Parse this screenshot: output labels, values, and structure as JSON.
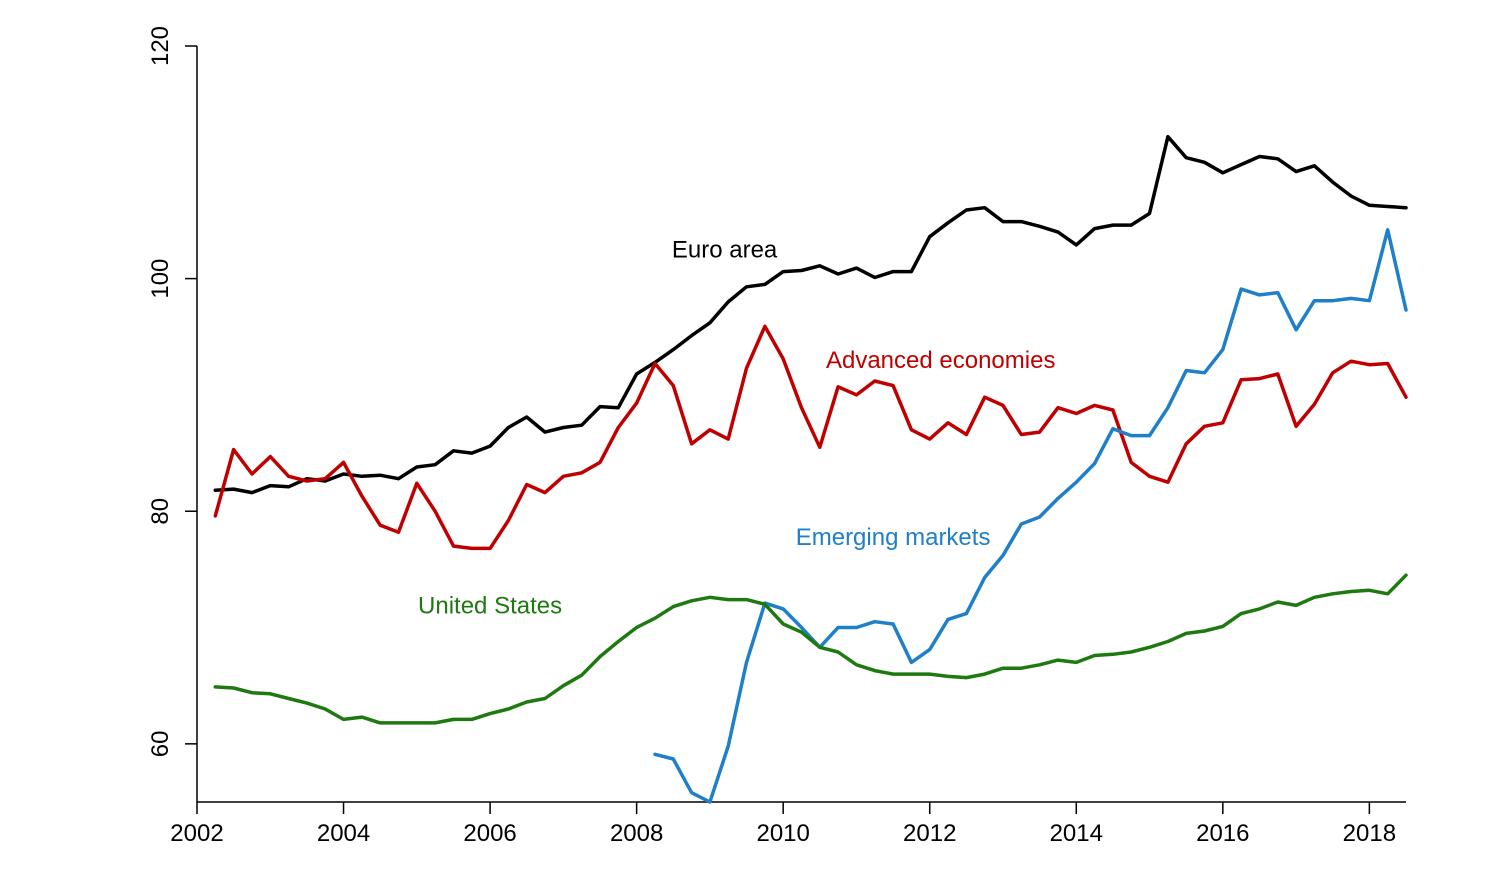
{
  "chart_data": {
    "type": "line",
    "title": "",
    "xlabel": "",
    "ylabel": "",
    "xlim": [
      2002,
      2018.5
    ],
    "ylim": [
      55,
      120
    ],
    "x_ticks": [
      2002,
      2004,
      2006,
      2008,
      2010,
      2012,
      2014,
      2016,
      2018
    ],
    "x_tick_labels": [
      "2002",
      "2004",
      "2006",
      "2008",
      "2010",
      "2012",
      "2014",
      "2016",
      "2018"
    ],
    "y_ticks": [
      60,
      80,
      100,
      120
    ],
    "y_tick_labels": [
      "60",
      "80",
      "100",
      "120"
    ],
    "grid": false,
    "legend": "none",
    "series": [
      {
        "name": "Euro area",
        "color": "#000000",
        "x": [
          2002.25,
          2002.5,
          2002.75,
          2003,
          2003.25,
          2003.5,
          2003.75,
          2004,
          2004.25,
          2004.5,
          2004.75,
          2005,
          2005.25,
          2005.5,
          2005.75,
          2006,
          2006.25,
          2006.5,
          2006.75,
          2007,
          2007.25,
          2007.5,
          2007.75,
          2008,
          2008.25,
          2008.5,
          2008.75,
          2009,
          2009.25,
          2009.5,
          2009.75,
          2010,
          2010.25,
          2010.5,
          2010.75,
          2011,
          2011.25,
          2011.5,
          2011.75,
          2012,
          2012.25,
          2012.5,
          2012.75,
          2013,
          2013.25,
          2013.5,
          2013.75,
          2014,
          2014.25,
          2014.5,
          2014.75,
          2015,
          2015.25,
          2015.5,
          2015.75,
          2016,
          2016.25,
          2016.5,
          2016.75,
          2017,
          2017.25,
          2017.5,
          2017.75,
          2018,
          2018.25,
          2018.5
        ],
        "y": [
          81.8,
          81.9,
          81.6,
          82.2,
          82.1,
          82.8,
          82.6,
          83.2,
          83.0,
          83.1,
          82.8,
          83.8,
          84.0,
          85.2,
          85.0,
          85.6,
          87.2,
          88.1,
          86.8,
          87.2,
          87.4,
          89.0,
          88.9,
          91.8,
          92.8,
          93.9,
          95.1,
          96.2,
          98.0,
          99.3,
          99.5,
          100.6,
          100.7,
          101.1,
          100.4,
          100.9,
          100.1,
          100.6,
          100.6,
          103.6,
          104.8,
          105.9,
          106.1,
          104.9,
          104.9,
          104.5,
          104.0,
          102.9,
          104.3,
          104.6,
          104.6,
          105.6,
          112.2,
          110.4,
          110.0,
          109.1,
          109.8,
          110.5,
          110.3,
          109.2,
          109.7,
          108.3,
          107.1,
          106.3,
          106.2,
          106.1
        ]
      },
      {
        "name": "Advanced economies",
        "color": "#c00000",
        "x": [
          2002.25,
          2002.5,
          2002.75,
          2003,
          2003.25,
          2003.5,
          2003.75,
          2004,
          2004.25,
          2004.5,
          2004.75,
          2005,
          2005.25,
          2005.5,
          2005.75,
          2006,
          2006.25,
          2006.5,
          2006.75,
          2007,
          2007.25,
          2007.5,
          2007.75,
          2008,
          2008.25,
          2008.5,
          2008.75,
          2009,
          2009.25,
          2009.5,
          2009.75,
          2010,
          2010.25,
          2010.5,
          2010.75,
          2011,
          2011.25,
          2011.5,
          2011.75,
          2012,
          2012.25,
          2012.5,
          2012.75,
          2013,
          2013.25,
          2013.5,
          2013.75,
          2014,
          2014.25,
          2014.5,
          2014.75,
          2015,
          2015.25,
          2015.5,
          2015.75,
          2016,
          2016.25,
          2016.5,
          2016.75,
          2017,
          2017.25,
          2017.5,
          2017.75,
          2018,
          2018.25,
          2018.5
        ],
        "y": [
          79.6,
          85.3,
          83.2,
          84.7,
          83.0,
          82.6,
          82.8,
          84.2,
          81.3,
          78.8,
          78.2,
          82.4,
          80.0,
          77.0,
          76.8,
          76.8,
          79.2,
          82.3,
          81.6,
          83.0,
          83.3,
          84.2,
          87.2,
          89.3,
          92.7,
          90.8,
          85.8,
          87.0,
          86.2,
          92.3,
          95.9,
          93.1,
          88.9,
          85.5,
          90.7,
          90.0,
          91.2,
          90.8,
          87.0,
          86.2,
          87.6,
          86.6,
          89.8,
          89.1,
          86.6,
          86.8,
          88.9,
          88.4,
          89.1,
          88.7,
          84.2,
          83.0,
          82.5,
          85.8,
          87.3,
          87.6,
          91.3,
          91.4,
          91.8,
          87.3,
          89.2,
          91.9,
          92.9,
          92.6,
          92.7,
          89.8
        ]
      },
      {
        "name": "Emerging markets",
        "color": "#1f7fc8",
        "x": [
          2008.25,
          2008.5,
          2008.75,
          2009,
          2009.25,
          2009.5,
          2009.75,
          2010,
          2010.25,
          2010.5,
          2010.75,
          2011,
          2011.25,
          2011.5,
          2011.75,
          2012,
          2012.25,
          2012.5,
          2012.75,
          2013,
          2013.25,
          2013.5,
          2013.75,
          2014,
          2014.25,
          2014.5,
          2014.75,
          2015,
          2015.25,
          2015.5,
          2015.75,
          2016,
          2016.25,
          2016.5,
          2016.75,
          2017,
          2017.25,
          2017.5,
          2017.75,
          2018,
          2018.25,
          2018.5
        ],
        "y": [
          59.1,
          58.7,
          55.8,
          55.0,
          59.8,
          67.0,
          72.1,
          71.6,
          70.0,
          68.3,
          70.0,
          70.0,
          70.5,
          70.3,
          67.0,
          68.1,
          70.7,
          71.2,
          74.3,
          76.2,
          78.9,
          79.5,
          81.1,
          82.5,
          84.1,
          87.1,
          86.5,
          86.5,
          88.9,
          92.1,
          91.9,
          93.9,
          99.1,
          98.6,
          98.8,
          95.6,
          98.1,
          98.1,
          98.3,
          98.1,
          104.2,
          97.3
        ]
      },
      {
        "name": "United States",
        "color": "#1e7a10",
        "x": [
          2002.25,
          2002.5,
          2002.75,
          2003,
          2003.25,
          2003.5,
          2003.75,
          2004,
          2004.25,
          2004.5,
          2004.75,
          2005,
          2005.25,
          2005.5,
          2005.75,
          2006,
          2006.25,
          2006.5,
          2006.75,
          2007,
          2007.25,
          2007.5,
          2007.75,
          2008,
          2008.25,
          2008.5,
          2008.75,
          2009,
          2009.25,
          2009.5,
          2009.75,
          2010,
          2010.25,
          2010.5,
          2010.75,
          2011,
          2011.25,
          2011.5,
          2011.75,
          2012,
          2012.25,
          2012.5,
          2012.75,
          2013,
          2013.25,
          2013.5,
          2013.75,
          2014,
          2014.25,
          2014.5,
          2014.75,
          2015,
          2015.25,
          2015.5,
          2015.75,
          2016,
          2016.25,
          2016.5,
          2016.75,
          2017,
          2017.25,
          2017.5,
          2017.75,
          2018,
          2018.25,
          2018.5
        ],
        "y": [
          64.9,
          64.8,
          64.4,
          64.3,
          63.9,
          63.5,
          63.0,
          62.1,
          62.3,
          61.8,
          61.8,
          61.8,
          61.8,
          62.1,
          62.1,
          62.6,
          63.0,
          63.6,
          63.9,
          65.0,
          65.9,
          67.5,
          68.8,
          70.0,
          70.8,
          71.8,
          72.3,
          72.6,
          72.4,
          72.4,
          72.0,
          70.3,
          69.6,
          68.3,
          67.9,
          66.8,
          66.3,
          66.0,
          66.0,
          66.0,
          65.8,
          65.7,
          66.0,
          66.5,
          66.5,
          66.8,
          67.2,
          67.0,
          67.6,
          67.7,
          67.9,
          68.3,
          68.8,
          69.5,
          69.7,
          70.1,
          71.2,
          71.6,
          72.2,
          71.9,
          72.6,
          72.9,
          73.1,
          73.2,
          72.9,
          74.5
        ]
      }
    ],
    "annotations": [
      {
        "text": "Euro area",
        "series": "Euro area",
        "x": 2009.2,
        "y": 101.8
      },
      {
        "text": "Advanced economies",
        "series": "Advanced economies",
        "x": 2012.15,
        "y": 92.3
      },
      {
        "text": "Emerging markets",
        "series": "Emerging markets",
        "x": 2011.5,
        "y": 77.1
      },
      {
        "text": "United States",
        "series": "United States",
        "x": 2006.0,
        "y": 71.2
      }
    ]
  }
}
